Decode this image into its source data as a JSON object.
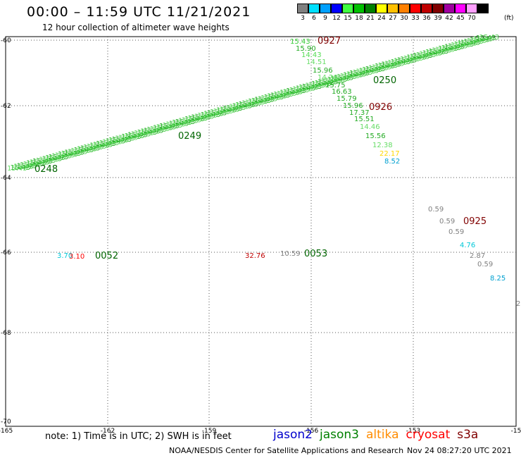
{
  "title": "00:00 – 11:59 UTC 11/21/2021",
  "subtitle": "12 hour collection of altimeter wave heights",
  "colorbar": {
    "unit": "(ft)",
    "entries": [
      {
        "label": "3",
        "color": "#808080"
      },
      {
        "label": "6",
        "color": "#00e0ff"
      },
      {
        "label": "9",
        "color": "#00a0ff"
      },
      {
        "label": "12",
        "color": "#0000ff"
      },
      {
        "label": "15",
        "color": "#40ff40"
      },
      {
        "label": "18",
        "color": "#00c000"
      },
      {
        "label": "21",
        "color": "#008000"
      },
      {
        "label": "24",
        "color": "#ffff00"
      },
      {
        "label": "27",
        "color": "#ffc000"
      },
      {
        "label": "30",
        "color": "#ff8000"
      },
      {
        "label": "33",
        "color": "#ff0000"
      },
      {
        "label": "36",
        "color": "#c00000"
      },
      {
        "label": "39",
        "color": "#800000"
      },
      {
        "label": "42",
        "color": "#a000a0"
      },
      {
        "label": "45",
        "color": "#ff00ff"
      },
      {
        "label": "70",
        "color": "#ffa0ff"
      },
      {
        "label": "",
        "color": "#000000"
      }
    ]
  },
  "axes": {
    "lat_labels": [
      "-60",
      "-62",
      "-64",
      "-66",
      "-68",
      "-70"
    ],
    "lon_labels": [
      "-165",
      "-162",
      "-159",
      "-156",
      "-153",
      "-15"
    ]
  },
  "tracks": [
    {
      "label": "0927",
      "color": "#800000"
    },
    {
      "label": "0926",
      "color": "#800000"
    },
    {
      "label": "0925",
      "color": "#800000"
    },
    {
      "label": "0250",
      "color": "#006400"
    },
    {
      "label": "0249",
      "color": "#006400"
    },
    {
      "label": "0248",
      "color": "#006400"
    },
    {
      "label": "0053",
      "color": "#006400"
    },
    {
      "label": "0052",
      "color": "#006400"
    }
  ],
  "values_track_0927": [
    "15.43",
    "15.90",
    "14.43",
    "14.51",
    "15.96",
    "14.26",
    "15.75",
    "16.63",
    "15.79",
    "15.96",
    "17.37",
    "15.51",
    "14.46",
    "15.56",
    "12.38",
    "22.17",
    "8.52"
  ],
  "values_track_0925": [
    "0.59",
    "0.59",
    "0.59",
    "4.76",
    "2.87",
    "0.59",
    "8.25"
  ],
  "misc_values": [
    "3.70",
    "3.10",
    "32.76",
    "10.59",
    "2"
  ],
  "note": "note: 1) Time is in UTC; 2) SWH is in feet",
  "legend": [
    {
      "label": "jason2",
      "color": "#0000cc"
    },
    {
      "label": "jason3",
      "color": "#008000"
    },
    {
      "label": "altika",
      "color": "#ff8c00"
    },
    {
      "label": "cryosat",
      "color": "#ff0000"
    },
    {
      "label": "s3a",
      "color": "#800000"
    }
  ],
  "credit": "NOAA/NESDIS Center for Satellite Applications and Research",
  "credit_date": "Nov 24 08:27:20 UTC 2021"
}
